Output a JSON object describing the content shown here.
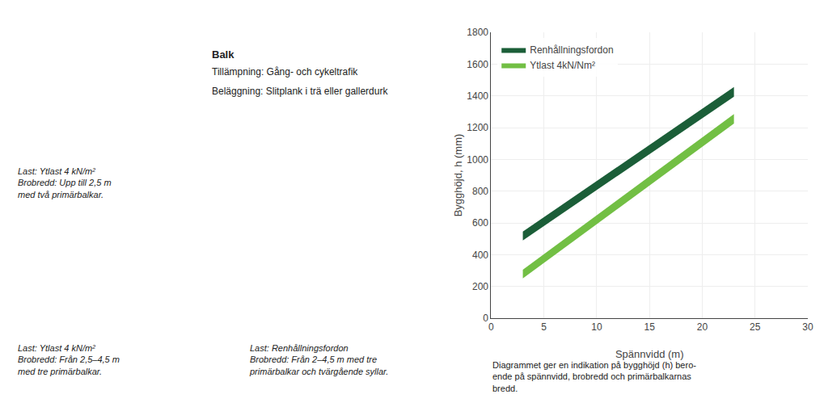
{
  "chart_data": {
    "type": "band",
    "x_label": "Spännvidd (m)",
    "y_label": "Bygghöjd, h (mm)",
    "xlim": [
      0,
      30
    ],
    "ylim": [
      0,
      1800
    ],
    "xticks": [
      0,
      5,
      10,
      15,
      20,
      25,
      30
    ],
    "yticks": [
      0,
      200,
      400,
      600,
      800,
      1000,
      1200,
      1400,
      1600,
      1800
    ],
    "grid": true,
    "legend": "upper left",
    "series": [
      {
        "name": "Renhållningsfordon",
        "color": "#1b5e38",
        "x": [
          3.0,
          23.0
        ],
        "lower": [
          490,
          1395
        ],
        "upper": [
          545,
          1455
        ]
      },
      {
        "name": "Ytlast 4kN/Nm²",
        "color": "#72bf44",
        "x": [
          3.0,
          23.0
        ],
        "lower": [
          250,
          1225
        ],
        "upper": [
          305,
          1285
        ]
      }
    ],
    "annotations": [
      "Balk",
      "Tillämpning: Gång- och cykeltrafik",
      "Beläggning: Slitplank i trä eller gallerdurk",
      "Last: Ytlast 4 kN/m²\nBrobredd: Upp till 2,5 m\nmed två primärbalkar.",
      "Last: Ytlast 4 kN/m²\nBrobredd: Från 2,5–4,5 m\nmed tre primärbalkar.",
      "Last: Renhållningsfordon\nBrobredd: Från 2–4,5 m med tre\nprimärbalkar och tvärgående syllar.",
      "Diagrammet ger en indikation på bygghöjd (h) bero-\nende på spännvidd, brobredd och primärbalkarnas\nbredd."
    ]
  }
}
